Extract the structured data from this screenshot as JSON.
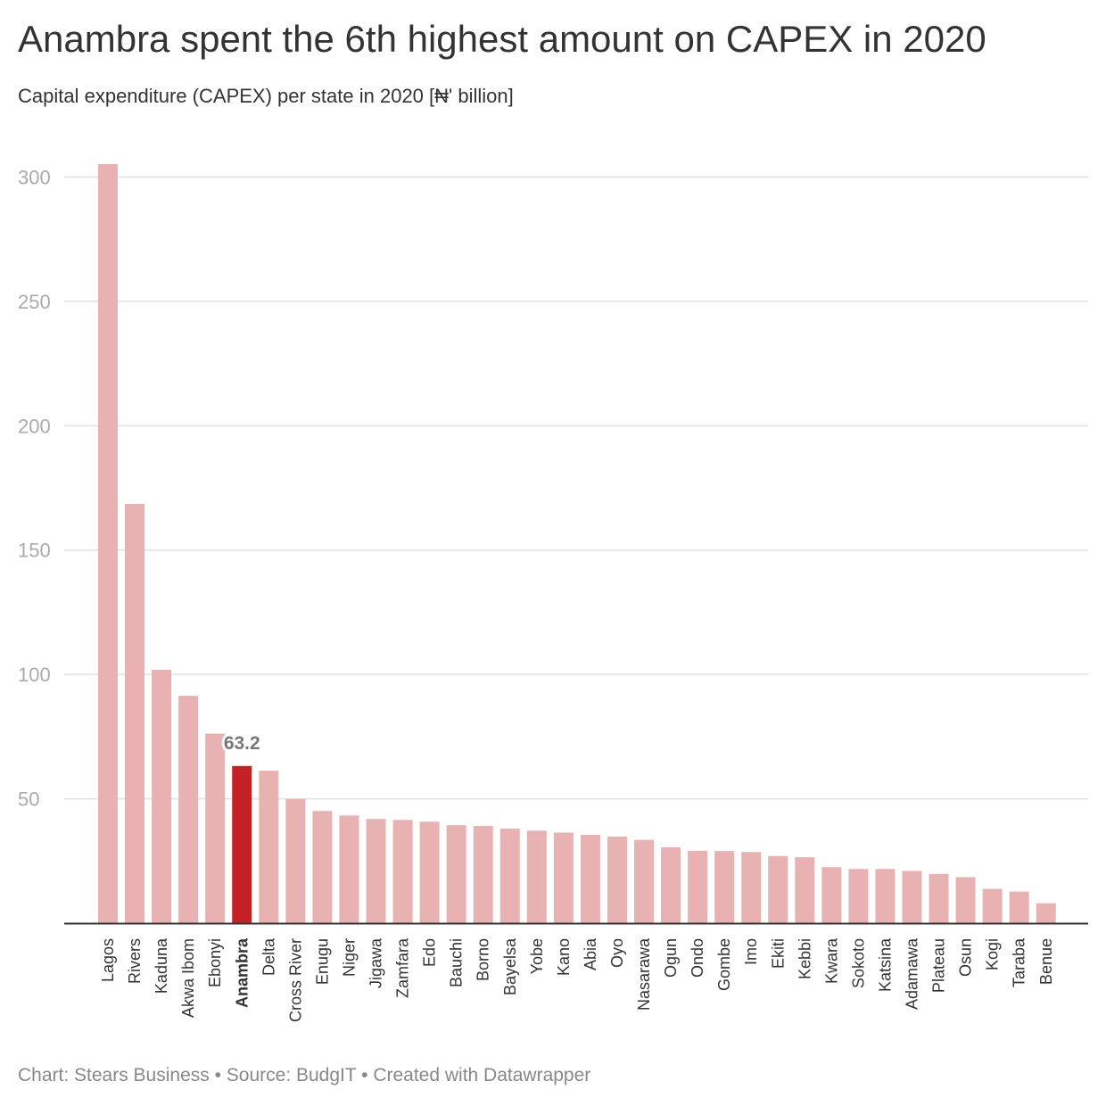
{
  "title": "Anambra spent the 6th highest amount on CAPEX in 2020",
  "subtitle": "Capital expenditure (CAPEX) per state in 2020 [₦' billion]",
  "footer": "Chart: Stears Business • Source: BudgIT • Created with Datawrapper",
  "colors": {
    "bar": "#e8b2b3",
    "highlight": "#c42126",
    "grid": "#e0e0e0",
    "axis": "#333333"
  },
  "chart_data": {
    "type": "bar",
    "categories": [
      "Lagos",
      "Rivers",
      "Kaduna",
      "Akwa Ibom",
      "Ebonyi",
      "Anambra",
      "Delta",
      "Cross River",
      "Enugu",
      "Niger",
      "Jigawa",
      "Zamfara",
      "Edo",
      "Bauchi",
      "Borno",
      "Bayelsa",
      "Yobe",
      "Kano",
      "Abia",
      "Oyo",
      "Nasarawa",
      "Ogun",
      "Ondo",
      "Gombe",
      "Imo",
      "Ekiti",
      "Kebbi",
      "Kwara",
      "Sokoto",
      "Katsina",
      "Adamawa",
      "Plateau",
      "Osun",
      "Kogi",
      "Taraba",
      "Benue"
    ],
    "values": [
      305.2,
      168.6,
      101.9,
      91.4,
      76.2,
      63.2,
      61.3,
      49.9,
      45.1,
      43.3,
      41.9,
      41.5,
      40.8,
      39.4,
      39.1,
      38.0,
      37.2,
      36.4,
      35.5,
      34.8,
      33.5,
      30.5,
      29.1,
      29.0,
      28.6,
      27.0,
      26.5,
      22.5,
      21.8,
      21.8,
      21.0,
      19.8,
      18.5,
      13.8,
      12.7,
      8.0
    ],
    "highlight": "Anambra",
    "annotations": [
      {
        "category": "Anambra",
        "label": "63.2"
      }
    ],
    "yticks": [
      50,
      100,
      150,
      200,
      250,
      300
    ],
    "ylim": [
      0,
      305.2
    ],
    "grid": true,
    "xlabel": "",
    "ylabel": ""
  }
}
